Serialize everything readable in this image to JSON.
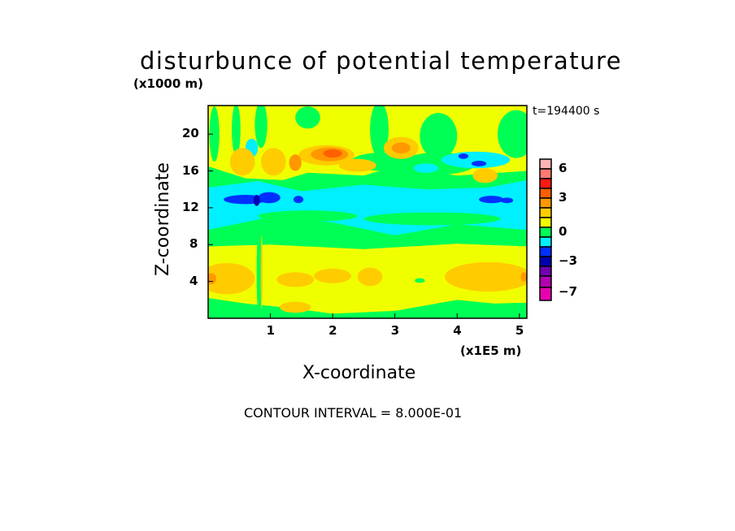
{
  "chart_data": {
    "type": "heatmap",
    "subtype": "filled-contour",
    "title": "disturbunce of potential temperature",
    "xlabel": "X-coordinate",
    "ylabel": "Z-coordinate",
    "x_unit": "(x1E5 m)",
    "y_unit": "(x1000 m)",
    "time_label": "t=194400 s",
    "footer": "CONTOUR INTERVAL = 8.000E-01",
    "xlim": [
      0,
      5.12
    ],
    "ylim": [
      0,
      23.1
    ],
    "xticks": [
      "1",
      "2",
      "3",
      "4",
      "5"
    ],
    "xtick_values": [
      1,
      2,
      3,
      4,
      5
    ],
    "yticks": [
      "4",
      "8",
      "12",
      "16",
      "20"
    ],
    "ytick_values": [
      4,
      8,
      12,
      16,
      20
    ],
    "colorbar": {
      "colors_top_to_bottom": [
        "#ffb4b4",
        "#ff7a72",
        "#ff1a14",
        "#ff5f00",
        "#ff9800",
        "#ffcc00",
        "#f0ff00",
        "#00ff55",
        "#00f0ff",
        "#0030ff",
        "#0000b0",
        "#7000b0",
        "#b000b0",
        "#e800b0"
      ],
      "labels": [
        "6",
        "3",
        "0",
        "-3",
        "-7"
      ],
      "label_box_index": [
        0.5,
        3.5,
        7,
        10,
        13
      ]
    },
    "background_level_color": "#f0ff00",
    "features": [
      {
        "shape": "poly",
        "color": "#00ff55",
        "pts": [
          [
            0,
            16.5
          ],
          [
            0.6,
            15.2
          ],
          [
            1.2,
            15
          ],
          [
            1.6,
            15.8
          ],
          [
            2.5,
            15.5
          ],
          [
            3,
            16.5
          ],
          [
            4,
            15.5
          ],
          [
            5.12,
            16
          ],
          [
            5.12,
            7.8
          ],
          [
            4,
            8.1
          ],
          [
            2.5,
            7.5
          ],
          [
            1,
            8
          ],
          [
            0,
            7.8
          ]
        ]
      },
      {
        "shape": "poly",
        "color": "#00f0ff",
        "pts": [
          [
            0,
            14.2
          ],
          [
            0.8,
            14.9
          ],
          [
            1.5,
            13.8
          ],
          [
            2.5,
            14.5
          ],
          [
            3.5,
            14
          ],
          [
            4.5,
            14.2
          ],
          [
            5.12,
            15
          ],
          [
            5.12,
            9.6
          ],
          [
            4,
            10.2
          ],
          [
            3,
            9
          ],
          [
            2,
            10.4
          ],
          [
            1,
            11
          ],
          [
            0,
            9.6
          ]
        ]
      },
      {
        "shape": "ellipse",
        "color": "#00ff55",
        "c": [
          3.6,
          10.8
        ],
        "r": [
          1.1,
          0.7
        ]
      },
      {
        "shape": "ellipse",
        "color": "#00ff55",
        "c": [
          1.6,
          11.1
        ],
        "r": [
          0.8,
          0.6
        ]
      },
      {
        "shape": "ellipse",
        "color": "#00ff55",
        "c": [
          0.1,
          20
        ],
        "r": [
          0.08,
          3
        ]
      },
      {
        "shape": "ellipse",
        "color": "#00ff55",
        "c": [
          0.45,
          20.5
        ],
        "r": [
          0.07,
          2.8
        ]
      },
      {
        "shape": "ellipse",
        "color": "#00ff55",
        "c": [
          0.85,
          21
        ],
        "r": [
          0.1,
          2.5
        ]
      },
      {
        "shape": "ellipse",
        "color": "#00ff55",
        "c": [
          1.6,
          21.8
        ],
        "r": [
          0.2,
          1.2
        ]
      },
      {
        "shape": "ellipse",
        "color": "#00ff55",
        "c": [
          2.75,
          20.5
        ],
        "r": [
          0.15,
          3
        ]
      },
      {
        "shape": "ellipse",
        "color": "#00ff55",
        "c": [
          3.7,
          19.8
        ],
        "r": [
          0.3,
          2.5
        ]
      },
      {
        "shape": "ellipse",
        "color": "#00ff55",
        "c": [
          4.95,
          20
        ],
        "r": [
          0.3,
          2.6
        ]
      },
      {
        "shape": "ellipse",
        "color": "#00ff55",
        "c": [
          2.8,
          17
        ],
        "r": [
          0.5,
          1
        ]
      },
      {
        "shape": "ellipse",
        "color": "#00ff55",
        "c": [
          3.7,
          16.8
        ],
        "r": [
          0.6,
          1.2
        ]
      },
      {
        "shape": "ellipse",
        "color": "#00f0ff",
        "c": [
          4.3,
          17.2
        ],
        "r": [
          0.55,
          0.9
        ]
      },
      {
        "shape": "ellipse",
        "color": "#00f0ff",
        "c": [
          3.5,
          16.3
        ],
        "r": [
          0.2,
          0.5
        ]
      },
      {
        "shape": "ellipse",
        "color": "#00f0ff",
        "c": [
          0.7,
          18.5
        ],
        "r": [
          0.1,
          1
        ]
      },
      {
        "shape": "ellipse",
        "color": "#0030ff",
        "c": [
          4.1,
          17.6
        ],
        "r": [
          0.08,
          0.3
        ]
      },
      {
        "shape": "ellipse",
        "color": "#0030ff",
        "c": [
          4.35,
          16.8
        ],
        "r": [
          0.12,
          0.3
        ]
      },
      {
        "shape": "ellipse",
        "color": "#ffcc00",
        "c": [
          1.9,
          17.7
        ],
        "r": [
          0.45,
          1.1
        ]
      },
      {
        "shape": "ellipse",
        "color": "#ff9800",
        "c": [
          1.95,
          17.8
        ],
        "r": [
          0.3,
          0.75
        ]
      },
      {
        "shape": "ellipse",
        "color": "#ff5f00",
        "c": [
          2.0,
          17.9
        ],
        "r": [
          0.15,
          0.45
        ]
      },
      {
        "shape": "ellipse",
        "color": "#ffcc00",
        "c": [
          3.1,
          18.5
        ],
        "r": [
          0.28,
          1.2
        ]
      },
      {
        "shape": "ellipse",
        "color": "#ff9800",
        "c": [
          3.1,
          18.5
        ],
        "r": [
          0.15,
          0.6
        ]
      },
      {
        "shape": "ellipse",
        "color": "#ffcc00",
        "c": [
          2.4,
          16.6
        ],
        "r": [
          0.3,
          0.7
        ]
      },
      {
        "shape": "ellipse",
        "color": "#ffcc00",
        "c": [
          0.55,
          17
        ],
        "r": [
          0.2,
          1.5
        ]
      },
      {
        "shape": "ellipse",
        "color": "#ffcc00",
        "c": [
          1.05,
          17
        ],
        "r": [
          0.2,
          1.5
        ]
      },
      {
        "shape": "ellipse",
        "color": "#ff9800",
        "c": [
          1.4,
          16.9
        ],
        "r": [
          0.1,
          0.9
        ]
      },
      {
        "shape": "ellipse",
        "color": "#ffcc00",
        "c": [
          4.45,
          15.5
        ],
        "r": [
          0.2,
          0.8
        ]
      },
      {
        "shape": "ellipse",
        "color": "#0030ff",
        "c": [
          0.6,
          12.9
        ],
        "r": [
          0.35,
          0.5
        ]
      },
      {
        "shape": "ellipse",
        "color": "#0030ff",
        "c": [
          0.98,
          13.1
        ],
        "r": [
          0.18,
          0.6
        ]
      },
      {
        "shape": "ellipse",
        "color": "#0030ff",
        "c": [
          1.45,
          12.9
        ],
        "r": [
          0.08,
          0.4
        ]
      },
      {
        "shape": "ellipse",
        "color": "#0030ff",
        "c": [
          4.55,
          12.9
        ],
        "r": [
          0.2,
          0.4
        ]
      },
      {
        "shape": "ellipse",
        "color": "#0030ff",
        "c": [
          4.8,
          12.8
        ],
        "r": [
          0.1,
          0.3
        ]
      },
      {
        "shape": "ellipse",
        "color": "#0000b0",
        "c": [
          0.78,
          12.8
        ],
        "r": [
          0.05,
          0.6
        ]
      },
      {
        "shape": "ellipse",
        "color": "#ffcc00",
        "c": [
          0.3,
          4.3
        ],
        "r": [
          0.45,
          1.7
        ]
      },
      {
        "shape": "ellipse",
        "color": "#ffcc00",
        "c": [
          4.5,
          4.5
        ],
        "r": [
          0.7,
          1.6
        ]
      },
      {
        "shape": "ellipse",
        "color": "#ffcc00",
        "c": [
          2.0,
          4.6
        ],
        "r": [
          0.3,
          0.8
        ]
      },
      {
        "shape": "ellipse",
        "color": "#ffcc00",
        "c": [
          1.4,
          4.2
        ],
        "r": [
          0.3,
          0.8
        ]
      },
      {
        "shape": "ellipse",
        "color": "#ffcc00",
        "c": [
          2.6,
          4.5
        ],
        "r": [
          0.2,
          1
        ]
      },
      {
        "shape": "ellipse",
        "color": "#ff9800",
        "c": [
          0.05,
          4.3
        ],
        "r": [
          0.08,
          0.6
        ]
      },
      {
        "shape": "ellipse",
        "color": "#ff9800",
        "c": [
          5.07,
          4.5
        ],
        "r": [
          0.05,
          0.5
        ]
      },
      {
        "shape": "poly",
        "color": "#00ff55",
        "pts": [
          [
            0,
            0
          ],
          [
            0,
            2.2
          ],
          [
            0.6,
            1.6
          ],
          [
            1.2,
            1.2
          ],
          [
            2,
            0.5
          ],
          [
            3,
            0.8
          ],
          [
            4,
            2
          ],
          [
            4.6,
            1.6
          ],
          [
            5.12,
            1.7
          ],
          [
            5.12,
            0
          ]
        ]
      },
      {
        "shape": "ellipse",
        "color": "#ffcc00",
        "c": [
          1.4,
          1.2
        ],
        "r": [
          0.25,
          0.6
        ]
      },
      {
        "shape": "ellipse",
        "color": "#00ff55",
        "c": [
          3.4,
          4.1
        ],
        "r": [
          0.08,
          0.25
        ]
      },
      {
        "shape": "ellipse",
        "color": "#00ff55",
        "c": [
          0.82,
          5
        ],
        "r": [
          0.04,
          5
        ]
      },
      {
        "shape": "ellipse",
        "color": "#ffcc00",
        "c": [
          0.86,
          5
        ],
        "r": [
          0.015,
          4
        ]
      }
    ]
  }
}
